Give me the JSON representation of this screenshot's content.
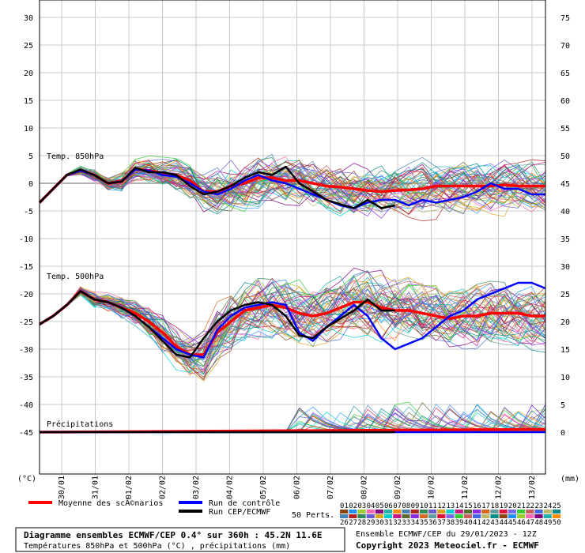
{
  "chart_data": {
    "type": "line",
    "title": "Diagramme ensembles ECMWF/CEP 0.4° sur 360h : 45.2N 11.6E",
    "subtitle": "Températures 850hPa et 500hPa (°C) , précipitations (mm)",
    "run_info": "Ensemble ECMWF/CEP du 29/01/2023 - 12Z",
    "copyright": "Copyright 2023 Meteociel.fr - ECMWF",
    "left_axis_unit": "(°C)",
    "right_axis_unit": "(mm)",
    "left_ticks": [
      30,
      25,
      20,
      15,
      10,
      5,
      0,
      -5,
      -10,
      -15,
      -20,
      -25,
      -30,
      -35,
      -40,
      -45
    ],
    "right_ticks": [
      75,
      70,
      65,
      60,
      55,
      50,
      45,
      40,
      35,
      30,
      25,
      20,
      15,
      10,
      5,
      0
    ],
    "ylim": [
      -45,
      30
    ],
    "date_labels": [
      "30/01",
      "31/01",
      "01/02",
      "02/02",
      "03/02",
      "04/02",
      "05/02",
      "06/02",
      "07/02",
      "08/02",
      "09/02",
      "10/02",
      "11/02",
      "12/02",
      "13/02"
    ],
    "panel_labels": {
      "t850": "Temp. 850hPa",
      "t500": "Temp. 500hPa",
      "precip": "Précipitations"
    },
    "legend": {
      "mean": "Moyenne des scÃ©narios",
      "control": "Run de contrôle",
      "oper": "Run CEP/ECMWF",
      "perts": "50 Perts."
    },
    "member_numbers_top": [
      "01",
      "02",
      "03",
      "04",
      "05",
      "06",
      "07",
      "08",
      "09",
      "10",
      "11",
      "12",
      "13",
      "14",
      "15",
      "16",
      "17",
      "18",
      "19",
      "20",
      "21",
      "22",
      "23",
      "24",
      "25"
    ],
    "member_numbers_bottom": [
      "26",
      "27",
      "28",
      "29",
      "30",
      "31",
      "32",
      "33",
      "34",
      "35",
      "36",
      "37",
      "38",
      "39",
      "40",
      "41",
      "42",
      "43",
      "44",
      "45",
      "46",
      "47",
      "48",
      "49",
      "50"
    ],
    "series": [
      {
        "name": "Moyenne des scÃ©narios",
        "color": "#ff0000",
        "t850": [
          [
            0,
            -3.5
          ],
          [
            0.5,
            -1
          ],
          [
            1,
            1.5
          ],
          [
            1.5,
            2.3
          ],
          [
            2,
            1.5
          ],
          [
            2.5,
            0
          ],
          [
            3,
            0.3
          ],
          [
            3.5,
            2.5
          ],
          [
            4,
            2.3
          ],
          [
            4.5,
            1.8
          ],
          [
            5,
            1.5
          ],
          [
            5.5,
            0.5
          ],
          [
            6,
            -1.5
          ],
          [
            6.5,
            -1.5
          ],
          [
            7,
            -0.5
          ],
          [
            7.5,
            0
          ],
          [
            8,
            1
          ],
          [
            8.5,
            1
          ],
          [
            9,
            0.5
          ],
          [
            9.5,
            0.5
          ],
          [
            10,
            0
          ],
          [
            10.5,
            -0.5
          ],
          [
            11,
            -0.7
          ],
          [
            11.5,
            -1
          ],
          [
            12,
            -1.3
          ],
          [
            12.5,
            -1.5
          ],
          [
            13,
            -1.3
          ],
          [
            13.5,
            -1.2
          ],
          [
            14,
            -1
          ],
          [
            14.5,
            -0.5
          ],
          [
            15,
            -0.5
          ],
          [
            15.5,
            -0.5
          ],
          [
            16,
            -0.5
          ],
          [
            16.5,
            -0.5
          ],
          [
            17,
            -0.3
          ],
          [
            17.5,
            -0.5
          ],
          [
            18,
            -0.5
          ],
          [
            18.5,
            -0.5
          ]
        ],
        "t500": [
          [
            0,
            -25.5
          ],
          [
            0.5,
            -24
          ],
          [
            1,
            -22
          ],
          [
            1.5,
            -19.5
          ],
          [
            2,
            -21
          ],
          [
            2.5,
            -21.5
          ],
          [
            3,
            -22.5
          ],
          [
            3.5,
            -23.5
          ],
          [
            4,
            -25
          ],
          [
            4.5,
            -27
          ],
          [
            5,
            -29.5
          ],
          [
            5.5,
            -31
          ],
          [
            6,
            -31
          ],
          [
            6.5,
            -27
          ],
          [
            7,
            -25
          ],
          [
            7.5,
            -23
          ],
          [
            8,
            -22.5
          ],
          [
            8.5,
            -22
          ],
          [
            9,
            -22.5
          ],
          [
            9.5,
            -23.5
          ],
          [
            10,
            -24
          ],
          [
            10.5,
            -23.5
          ],
          [
            11,
            -22.5
          ],
          [
            11.5,
            -21.5
          ],
          [
            12,
            -21.5
          ],
          [
            12.5,
            -22.5
          ],
          [
            13,
            -23
          ],
          [
            13.5,
            -23
          ],
          [
            14,
            -23.5
          ],
          [
            14.5,
            -24
          ],
          [
            15,
            -24.5
          ],
          [
            15.5,
            -24
          ],
          [
            16,
            -24
          ],
          [
            16.5,
            -23.5
          ],
          [
            17,
            -23.5
          ],
          [
            17.5,
            -23.5
          ],
          [
            18,
            -24
          ],
          [
            18.5,
            -24
          ]
        ],
        "precip_mm": [
          [
            0,
            0
          ],
          [
            18.5,
            0.5
          ]
        ]
      },
      {
        "name": "Run de contrôle",
        "color": "#0000ff",
        "t850": [
          [
            0,
            -3.5
          ],
          [
            0.5,
            -1
          ],
          [
            1,
            1.5
          ],
          [
            1.5,
            2.3
          ],
          [
            2,
            1.5
          ],
          [
            2.5,
            0
          ],
          [
            3,
            0.3
          ],
          [
            3.5,
            2.5
          ],
          [
            4,
            2.3
          ],
          [
            4.5,
            1.5
          ],
          [
            5,
            1.2
          ],
          [
            5.5,
            0
          ],
          [
            6,
            -1.5
          ],
          [
            6.5,
            -2
          ],
          [
            7,
            -1
          ],
          [
            7.5,
            0.5
          ],
          [
            8,
            1.5
          ],
          [
            8.5,
            0.5
          ],
          [
            9,
            0
          ],
          [
            9.5,
            -1
          ],
          [
            10,
            -2
          ],
          [
            10.5,
            -3
          ],
          [
            11,
            -4
          ],
          [
            11.5,
            -4.5
          ],
          [
            12,
            -3.5
          ],
          [
            12.5,
            -3
          ],
          [
            13,
            -3
          ],
          [
            13.5,
            -4
          ],
          [
            14,
            -3
          ],
          [
            14.5,
            -3.5
          ],
          [
            15,
            -3
          ],
          [
            15.5,
            -2.5
          ],
          [
            16,
            -1.5
          ],
          [
            16.5,
            0
          ],
          [
            17,
            -1
          ],
          [
            17.5,
            -1
          ],
          [
            18,
            -2
          ],
          [
            18.5,
            -2
          ]
        ],
        "t500": [
          [
            0,
            -25.5
          ],
          [
            0.5,
            -24
          ],
          [
            1,
            -22
          ],
          [
            1.5,
            -19.5
          ],
          [
            2,
            -21
          ],
          [
            2.5,
            -21.5
          ],
          [
            3,
            -22.5
          ],
          [
            3.5,
            -24
          ],
          [
            4,
            -26
          ],
          [
            4.5,
            -28
          ],
          [
            5,
            -30
          ],
          [
            5.5,
            -31
          ],
          [
            6,
            -31.5
          ],
          [
            6.5,
            -26.5
          ],
          [
            7,
            -24
          ],
          [
            7.5,
            -22.5
          ],
          [
            8,
            -22
          ],
          [
            8.5,
            -21.5
          ],
          [
            9,
            -22
          ],
          [
            9.5,
            -27
          ],
          [
            10,
            -28.5
          ],
          [
            10.5,
            -26
          ],
          [
            11,
            -24
          ],
          [
            11.5,
            -22
          ],
          [
            12,
            -24
          ],
          [
            12.5,
            -28
          ],
          [
            13,
            -30
          ],
          [
            13.5,
            -29
          ],
          [
            14,
            -28
          ],
          [
            14.5,
            -26
          ],
          [
            15,
            -24
          ],
          [
            15.5,
            -23
          ],
          [
            16,
            -21
          ],
          [
            16.5,
            -20
          ],
          [
            17,
            -19
          ],
          [
            17.5,
            -18
          ],
          [
            18,
            -18
          ],
          [
            18.5,
            -19
          ]
        ],
        "precip_mm": [
          [
            0,
            0
          ],
          [
            18.5,
            0
          ]
        ]
      },
      {
        "name": "Run CEP/ECMWF",
        "color": "#000000",
        "t850": [
          [
            0,
            -3.5
          ],
          [
            0.5,
            -1
          ],
          [
            1,
            1.5
          ],
          [
            1.5,
            2.5
          ],
          [
            2,
            1.5
          ],
          [
            2.5,
            0
          ],
          [
            3,
            0.3
          ],
          [
            3.5,
            2.8
          ],
          [
            4,
            2
          ],
          [
            4.5,
            2
          ],
          [
            5,
            1.5
          ],
          [
            5.5,
            -0.5
          ],
          [
            6,
            -2
          ],
          [
            6.5,
            -1.5
          ],
          [
            7,
            -0.5
          ],
          [
            7.5,
            1
          ],
          [
            8,
            2
          ],
          [
            8.5,
            1.5
          ],
          [
            9,
            3
          ],
          [
            9.5,
            0
          ],
          [
            10,
            -1.5
          ],
          [
            10.5,
            -3
          ],
          [
            11,
            -3.8
          ],
          [
            11.5,
            -4.5
          ],
          [
            12,
            -3
          ],
          [
            12.5,
            -4.5
          ],
          [
            13,
            -4
          ]
        ],
        "t500": [
          [
            0,
            -25.5
          ],
          [
            0.5,
            -24
          ],
          [
            1,
            -22
          ],
          [
            1.5,
            -19.5
          ],
          [
            2,
            -21
          ],
          [
            2.5,
            -21.5
          ],
          [
            3,
            -22.5
          ],
          [
            3.5,
            -24
          ],
          [
            4,
            -26
          ],
          [
            4.5,
            -28.5
          ],
          [
            5,
            -31
          ],
          [
            5.5,
            -31.5
          ],
          [
            6,
            -28
          ],
          [
            6.5,
            -25
          ],
          [
            7,
            -23
          ],
          [
            7.5,
            -22
          ],
          [
            8,
            -21.5
          ],
          [
            8.5,
            -22
          ],
          [
            9,
            -24
          ],
          [
            9.5,
            -27.5
          ],
          [
            10,
            -28
          ],
          [
            10.5,
            -26
          ],
          [
            11,
            -24.5
          ],
          [
            11.5,
            -23
          ],
          [
            12,
            -21
          ],
          [
            12.5,
            -23
          ],
          [
            13,
            -23
          ]
        ],
        "precip_mm": [
          [
            0,
            0
          ],
          [
            13,
            0
          ]
        ]
      }
    ],
    "grid": true,
    "legend_position": "bottom"
  }
}
